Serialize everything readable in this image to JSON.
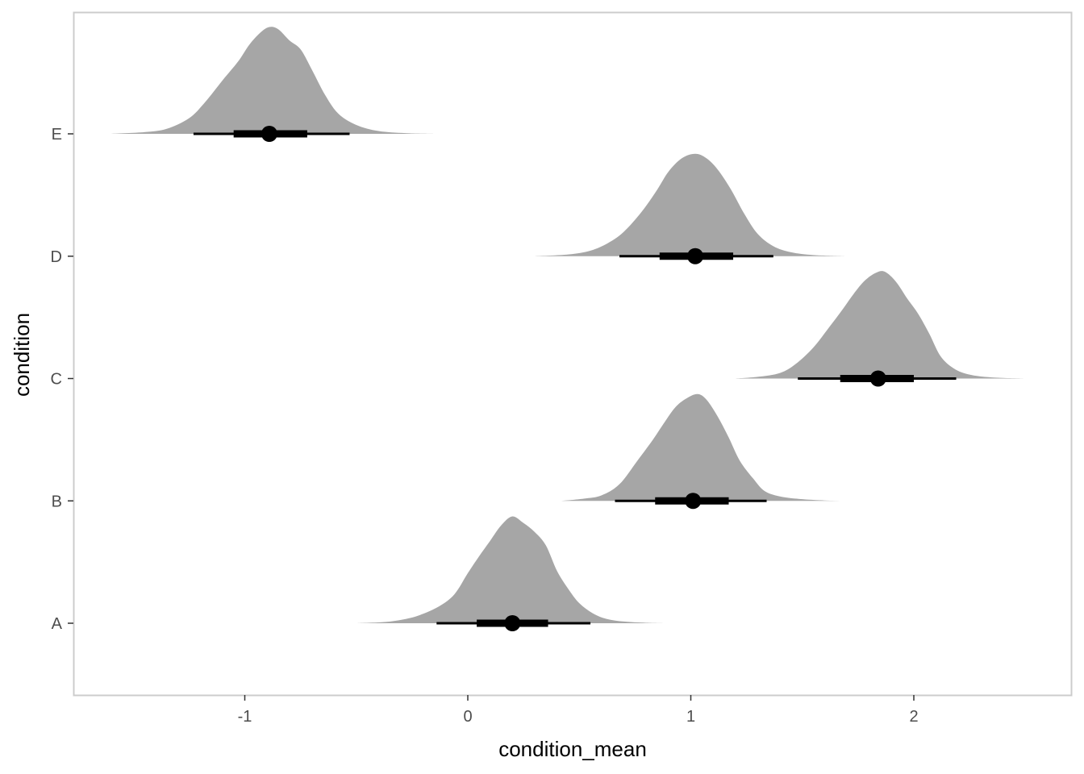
{
  "chart_data": {
    "type": "halfeye",
    "xlabel": "condition_mean",
    "ylabel": "condition",
    "xlim": [
      -1.82,
      2.7
    ],
    "x_ticks": [
      -1,
      0,
      1,
      2
    ],
    "x_tick_labels": [
      "-1",
      "0",
      "1",
      "2"
    ],
    "y_categories": [
      "A",
      "B",
      "C",
      "D",
      "E"
    ],
    "grid": false,
    "panel_border_color": "#cccccc",
    "density_fill_color": "#a6a6a6",
    "interval_color": "#000000",
    "distributions": [
      {
        "condition": "A",
        "point": 0.2,
        "interval_66": [
          0.04,
          0.36
        ],
        "interval_95": [
          -0.14,
          0.55
        ],
        "density_range": [
          -0.5,
          0.9
        ],
        "density_profile": [
          [
            -0.5,
            0.0
          ],
          [
            -0.38,
            0.01
          ],
          [
            -0.3,
            0.03
          ],
          [
            -0.22,
            0.07
          ],
          [
            -0.13,
            0.15
          ],
          [
            -0.06,
            0.26
          ],
          [
            0.0,
            0.45
          ],
          [
            0.05,
            0.6
          ],
          [
            0.1,
            0.74
          ],
          [
            0.15,
            0.88
          ],
          [
            0.2,
            0.96
          ],
          [
            0.25,
            0.9
          ],
          [
            0.3,
            0.82
          ],
          [
            0.35,
            0.7
          ],
          [
            0.4,
            0.47
          ],
          [
            0.45,
            0.31
          ],
          [
            0.5,
            0.18
          ],
          [
            0.56,
            0.09
          ],
          [
            0.62,
            0.04
          ],
          [
            0.7,
            0.015
          ],
          [
            0.8,
            0.004
          ],
          [
            0.9,
            0.0
          ]
        ]
      },
      {
        "condition": "B",
        "point": 1.01,
        "interval_66": [
          0.84,
          1.17
        ],
        "interval_95": [
          0.66,
          1.34
        ],
        "density_range": [
          0.42,
          1.68
        ],
        "density_profile": [
          [
            0.42,
            0.0
          ],
          [
            0.52,
            0.02
          ],
          [
            0.6,
            0.05
          ],
          [
            0.68,
            0.15
          ],
          [
            0.76,
            0.36
          ],
          [
            0.83,
            0.55
          ],
          [
            0.88,
            0.7
          ],
          [
            0.93,
            0.84
          ],
          [
            0.98,
            0.92
          ],
          [
            1.03,
            0.96
          ],
          [
            1.07,
            0.91
          ],
          [
            1.12,
            0.76
          ],
          [
            1.17,
            0.57
          ],
          [
            1.22,
            0.36
          ],
          [
            1.28,
            0.2
          ],
          [
            1.33,
            0.09
          ],
          [
            1.4,
            0.04
          ],
          [
            1.5,
            0.015
          ],
          [
            1.6,
            0.004
          ],
          [
            1.68,
            0.0
          ]
        ]
      },
      {
        "condition": "C",
        "point": 1.84,
        "interval_66": [
          1.67,
          2.0
        ],
        "interval_95": [
          1.48,
          2.19
        ],
        "density_range": [
          1.2,
          2.5
        ],
        "density_profile": [
          [
            1.2,
            0.0
          ],
          [
            1.3,
            0.015
          ],
          [
            1.4,
            0.05
          ],
          [
            1.47,
            0.13
          ],
          [
            1.55,
            0.28
          ],
          [
            1.62,
            0.46
          ],
          [
            1.68,
            0.62
          ],
          [
            1.73,
            0.76
          ],
          [
            1.78,
            0.88
          ],
          [
            1.83,
            0.95
          ],
          [
            1.87,
            0.96
          ],
          [
            1.92,
            0.87
          ],
          [
            1.97,
            0.72
          ],
          [
            2.02,
            0.58
          ],
          [
            2.07,
            0.4
          ],
          [
            2.12,
            0.2
          ],
          [
            2.18,
            0.09
          ],
          [
            2.25,
            0.035
          ],
          [
            2.35,
            0.01
          ],
          [
            2.5,
            0.0
          ]
        ]
      },
      {
        "condition": "D",
        "point": 1.02,
        "interval_66": [
          0.86,
          1.19
        ],
        "interval_95": [
          0.68,
          1.37
        ],
        "density_range": [
          0.3,
          1.69
        ],
        "density_profile": [
          [
            0.3,
            0.0
          ],
          [
            0.45,
            0.015
          ],
          [
            0.55,
            0.05
          ],
          [
            0.63,
            0.12
          ],
          [
            0.7,
            0.22
          ],
          [
            0.78,
            0.4
          ],
          [
            0.85,
            0.6
          ],
          [
            0.9,
            0.76
          ],
          [
            0.96,
            0.88
          ],
          [
            1.02,
            0.92
          ],
          [
            1.07,
            0.88
          ],
          [
            1.12,
            0.78
          ],
          [
            1.18,
            0.6
          ],
          [
            1.24,
            0.38
          ],
          [
            1.3,
            0.2
          ],
          [
            1.37,
            0.09
          ],
          [
            1.45,
            0.035
          ],
          [
            1.55,
            0.01
          ],
          [
            1.69,
            0.0
          ]
        ]
      },
      {
        "condition": "E",
        "point": -0.89,
        "interval_66": [
          -1.05,
          -0.72
        ],
        "interval_95": [
          -1.23,
          -0.53
        ],
        "density_range": [
          -1.6,
          -0.15
        ],
        "density_profile": [
          [
            -1.6,
            0.0
          ],
          [
            -1.45,
            0.015
          ],
          [
            -1.35,
            0.045
          ],
          [
            -1.25,
            0.14
          ],
          [
            -1.18,
            0.28
          ],
          [
            -1.1,
            0.48
          ],
          [
            -1.03,
            0.65
          ],
          [
            -0.98,
            0.8
          ],
          [
            -0.93,
            0.91
          ],
          [
            -0.89,
            0.96
          ],
          [
            -0.85,
            0.94
          ],
          [
            -0.8,
            0.84
          ],
          [
            -0.75,
            0.76
          ],
          [
            -0.7,
            0.58
          ],
          [
            -0.64,
            0.35
          ],
          [
            -0.58,
            0.18
          ],
          [
            -0.5,
            0.08
          ],
          [
            -0.4,
            0.025
          ],
          [
            -0.28,
            0.006
          ],
          [
            -0.15,
            0.0
          ]
        ]
      }
    ]
  }
}
